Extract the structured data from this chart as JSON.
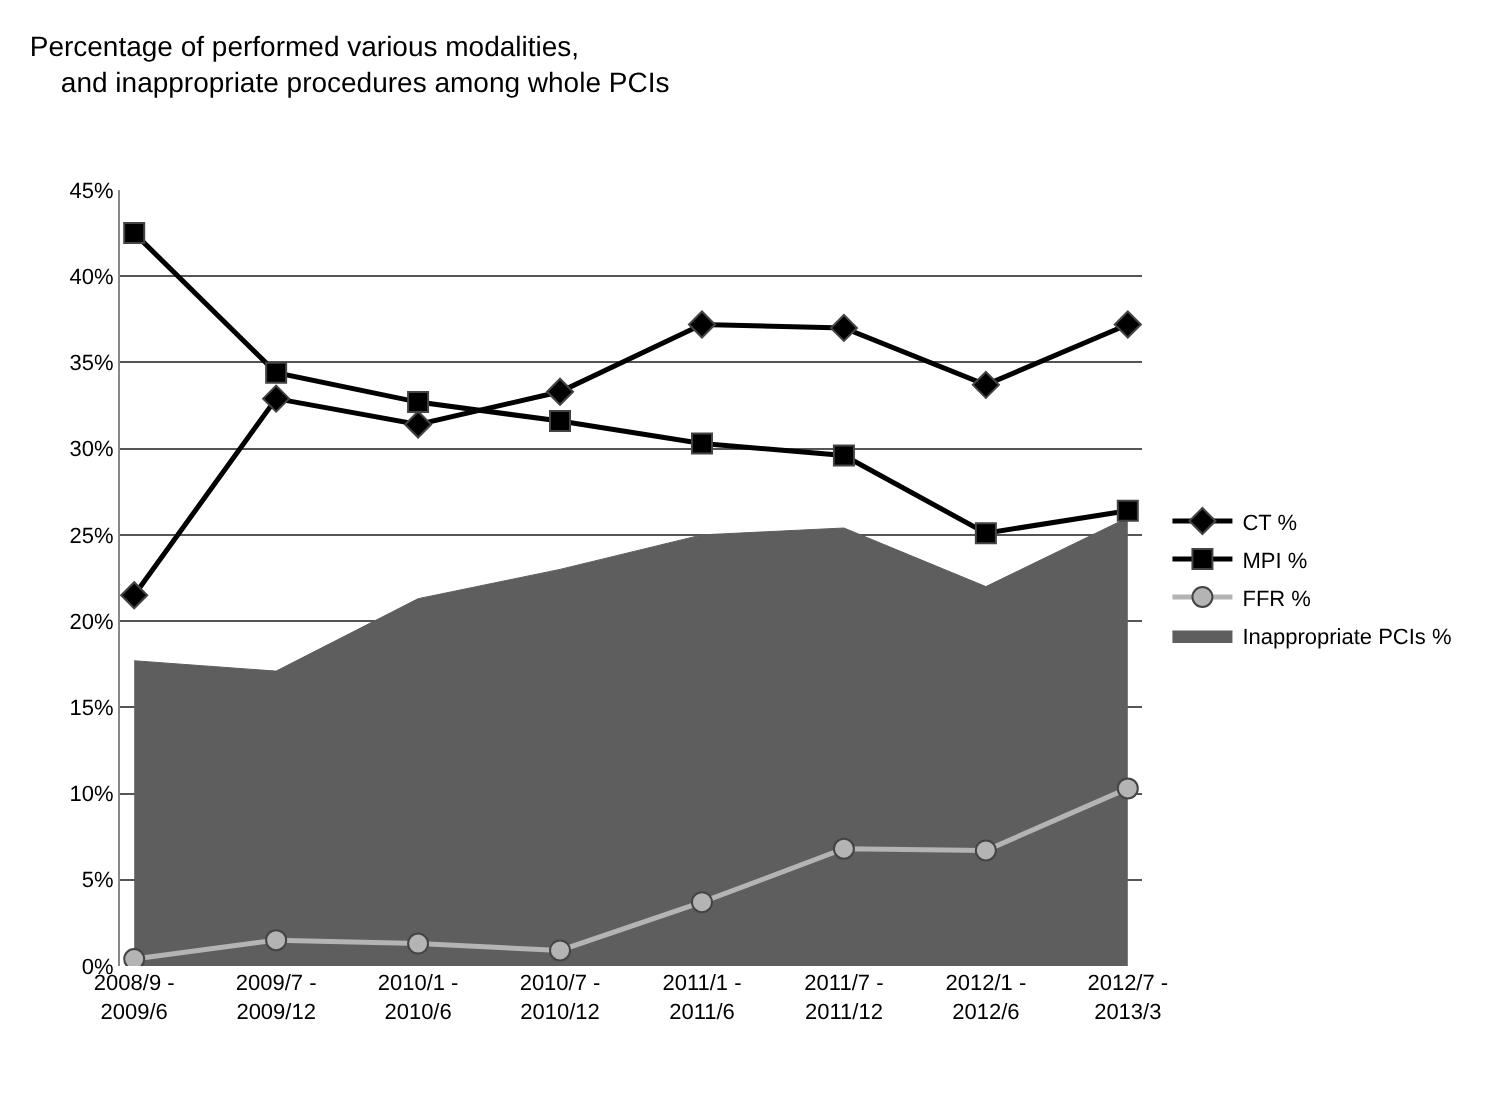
{
  "chart_data": {
    "type": "line",
    "title": "Percentage of performed various modalities,\n    and inappropriate procedures among whole PCIs",
    "categories": [
      "2008/9 -\n2009/6",
      "2009/7 -\n2009/12",
      "2010/1 -\n2010/6",
      "2010/7 -\n2010/12",
      "2011/1 -\n2011/6",
      "2011/7 -\n2011/12",
      "2012/1 -\n2012/6",
      "2012/7 -\n2013/3"
    ],
    "series": [
      {
        "name": "CT %",
        "color": "#000000",
        "marker": "diamond",
        "values": [
          21.5,
          32.9,
          31.4,
          33.3,
          37.2,
          37.0,
          33.7,
          37.2
        ]
      },
      {
        "name": "MPI %",
        "color": "#000000",
        "marker": "square",
        "values": [
          42.5,
          34.4,
          32.7,
          31.6,
          30.3,
          29.6,
          25.1,
          26.4
        ]
      },
      {
        "name": "FFR %",
        "color": "#b4b4b4",
        "marker": "circle",
        "values": [
          0.4,
          1.5,
          1.3,
          0.9,
          3.7,
          6.8,
          6.7,
          10.3
        ]
      },
      {
        "name": "Inappropriate PCIs %",
        "type": "area",
        "color": "#5e5e5e",
        "values": [
          17.7,
          17.1,
          21.3,
          23.0,
          25.0,
          25.4,
          22.0,
          26.0
        ]
      }
    ],
    "ylim": [
      0,
      45
    ],
    "yticks": [
      {
        "value": 0,
        "label": "0%"
      },
      {
        "value": 5,
        "label": "5%"
      },
      {
        "value": 10,
        "label": "10%"
      },
      {
        "value": 15,
        "label": "15%"
      },
      {
        "value": 20,
        "label": "20%"
      },
      {
        "value": 25,
        "label": "25%"
      },
      {
        "value": 30,
        "label": "30%"
      },
      {
        "value": 35,
        "label": "35%"
      },
      {
        "value": 40,
        "label": "40%"
      },
      {
        "value": 45,
        "label": "45%"
      }
    ],
    "grid": "y",
    "legend": "right"
  }
}
